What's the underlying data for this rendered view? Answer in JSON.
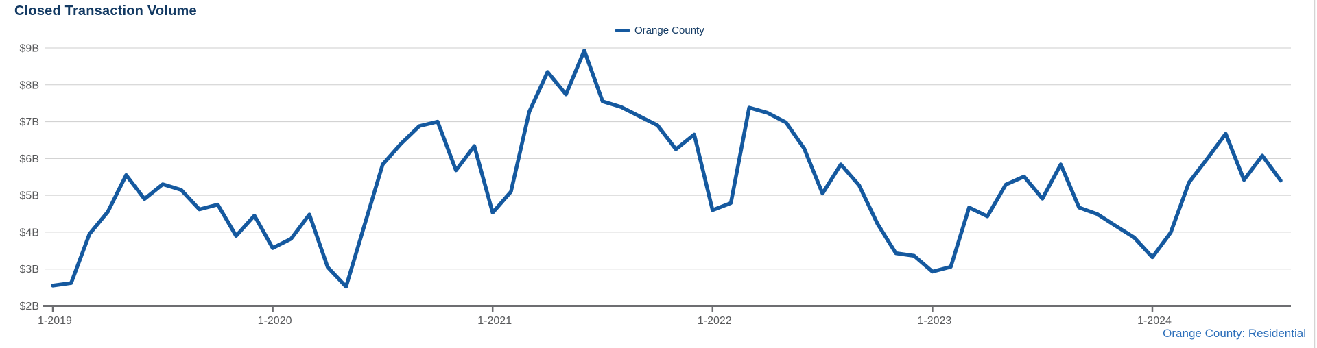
{
  "header": {
    "title": "Closed Transaction Volume"
  },
  "legend": {
    "label": "Orange County"
  },
  "footer": {
    "label": "Orange County: Residential"
  },
  "colors": {
    "line": "#15599f",
    "title_text": "#133a63",
    "legend_text": "#133a63",
    "footer_text": "#2d6fba",
    "axis_label": "#58595b",
    "gridline": "#cdcdcd",
    "axis_line": "#6d6e71",
    "right_edge_line": "#d4d4d4",
    "background": "#ffffff"
  },
  "chart_data": {
    "type": "line",
    "title": "Closed Transaction Volume",
    "xlabel": "",
    "ylabel": "",
    "ylim": [
      2,
      9
    ],
    "grid": "horizontal",
    "legend_position": "top-center",
    "ytick_values": [
      2,
      3,
      4,
      5,
      6,
      7,
      8,
      9
    ],
    "ytick_labels": [
      "$2B",
      "$3B",
      "$4B",
      "$5B",
      "$6B",
      "$7B",
      "$8B",
      "$9B"
    ],
    "xticks": [
      {
        "index": 0,
        "label": "1-2019"
      },
      {
        "index": 12,
        "label": "1-2020"
      },
      {
        "index": 24,
        "label": "1-2021"
      },
      {
        "index": 36,
        "label": "1-2022"
      },
      {
        "index": 48,
        "label": "1-2023"
      },
      {
        "index": 60,
        "label": "1-2024"
      }
    ],
    "x": [
      "1-2019",
      "2-2019",
      "3-2019",
      "4-2019",
      "5-2019",
      "6-2019",
      "7-2019",
      "8-2019",
      "9-2019",
      "10-2019",
      "11-2019",
      "12-2019",
      "1-2020",
      "2-2020",
      "3-2020",
      "4-2020",
      "5-2020",
      "6-2020",
      "7-2020",
      "8-2020",
      "9-2020",
      "10-2020",
      "11-2020",
      "12-2020",
      "1-2021",
      "2-2021",
      "3-2021",
      "4-2021",
      "5-2021",
      "6-2021",
      "7-2021",
      "8-2021",
      "9-2021",
      "10-2021",
      "11-2021",
      "12-2021",
      "1-2022",
      "2-2022",
      "3-2022",
      "4-2022",
      "5-2022",
      "6-2022",
      "7-2022",
      "8-2022",
      "9-2022",
      "10-2022",
      "11-2022",
      "12-2022",
      "1-2023",
      "2-2023",
      "3-2023",
      "4-2023",
      "5-2023",
      "6-2023",
      "7-2023",
      "8-2023",
      "9-2023",
      "10-2023",
      "11-2023",
      "12-2023",
      "1-2024",
      "2-2024",
      "3-2024",
      "4-2024",
      "5-2024",
      "6-2024",
      "7-2024",
      "8-2024"
    ],
    "series": [
      {
        "name": "Orange County",
        "unit": "billions USD",
        "values": [
          2.55,
          2.62,
          3.95,
          4.55,
          5.55,
          4.9,
          5.3,
          5.15,
          4.62,
          4.75,
          3.9,
          4.45,
          3.57,
          3.82,
          4.48,
          3.05,
          2.52,
          4.18,
          5.84,
          6.4,
          6.88,
          7.0,
          5.68,
          6.34,
          4.53,
          5.1,
          7.27,
          8.35,
          7.74,
          8.93,
          7.55,
          7.4,
          7.15,
          6.9,
          6.25,
          6.65,
          4.6,
          4.79,
          7.38,
          7.24,
          6.98,
          6.27,
          5.05,
          5.84,
          5.27,
          4.23,
          3.43,
          3.36,
          2.93,
          3.06,
          4.67,
          4.43,
          5.29,
          5.51,
          4.91,
          5.84,
          4.67,
          4.49,
          4.17,
          3.86,
          3.32,
          3.99,
          5.35,
          6.0,
          6.67,
          5.42,
          6.08,
          5.4
        ]
      }
    ]
  }
}
